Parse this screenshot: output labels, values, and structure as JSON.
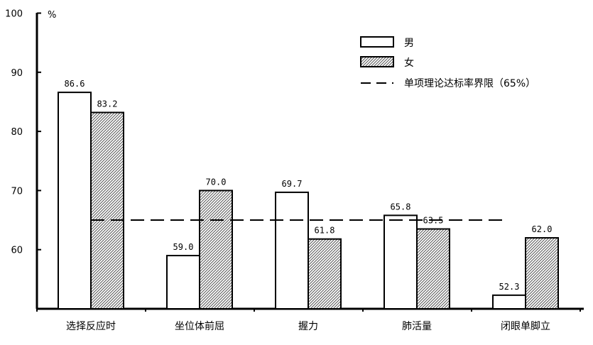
{
  "chart_data": {
    "type": "bar",
    "ylabel": "%",
    "ylim": [
      50,
      100
    ],
    "yticks": [
      60,
      70,
      80,
      90,
      100
    ],
    "categories": [
      "选择反应时",
      "坐位体前屈",
      "握力",
      "肺活量",
      "闭眼单脚立"
    ],
    "series": [
      {
        "name": "男",
        "values": [
          86.6,
          59.0,
          69.7,
          65.8,
          52.3
        ],
        "value_labels": [
          "86.6",
          "59.0",
          "69.7",
          "65.8",
          "52.3"
        ],
        "fill": "#ffffff"
      },
      {
        "name": "女",
        "values": [
          83.2,
          70.0,
          61.8,
          63.5,
          62.0
        ],
        "value_labels": [
          "83.2",
          "70.0",
          "61.8",
          "63.5",
          "62.0"
        ],
        "fill": "hatched"
      }
    ],
    "reference_line": {
      "label": "单项理论达标率界限（65%）",
      "value": 65,
      "style": "dashed"
    },
    "legend_position": "top-right",
    "grid": false
  }
}
